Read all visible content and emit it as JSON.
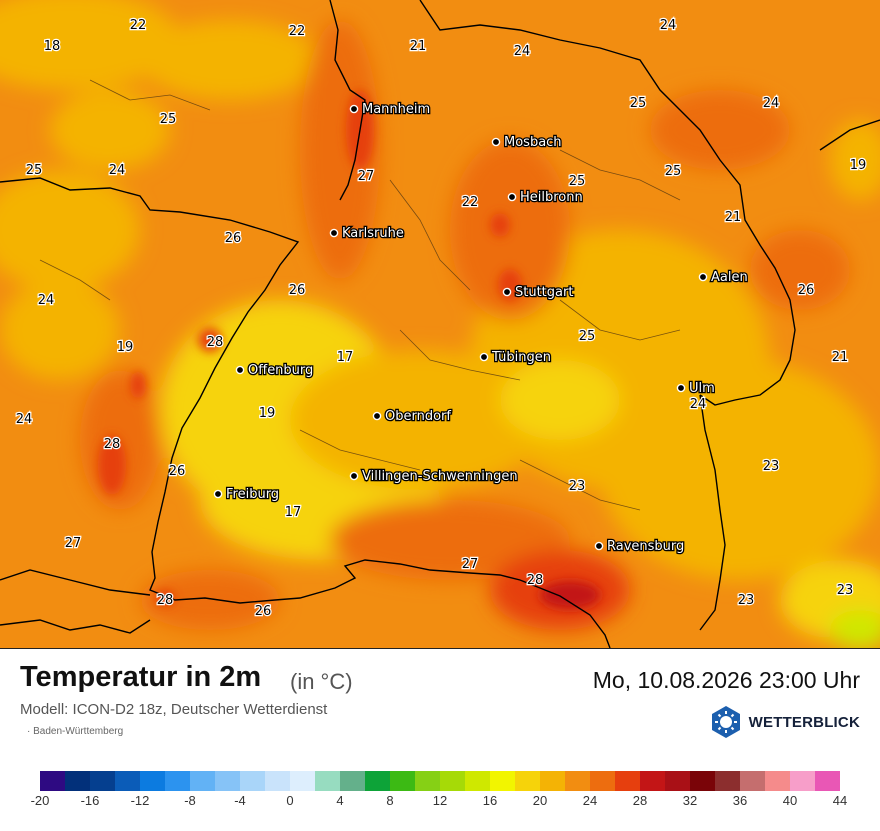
{
  "title": "Temperatur in 2m",
  "unit": "(in °C)",
  "model": "Modell: ICON-D2 18z, Deutscher Wetterdienst",
  "region": "Baden-Württemberg",
  "datetime": "Mo, 10.08.2026 23:00 Uhr",
  "brand": "WETTERBLICK",
  "cities": [
    {
      "name": "Mannheim"
    },
    {
      "name": "Mosbach"
    },
    {
      "name": "Heilbronn"
    },
    {
      "name": "Karlsruhe"
    },
    {
      "name": "Stuttgart"
    },
    {
      "name": "Aalen"
    },
    {
      "name": "Offenburg"
    },
    {
      "name": "Tübingen"
    },
    {
      "name": "Ulm"
    },
    {
      "name": "Oberndorf"
    },
    {
      "name": "Villingen-Schwenningen"
    },
    {
      "name": "Freiburg"
    },
    {
      "name": "Ravensburg"
    }
  ],
  "values": [
    "22",
    "18",
    "22",
    "21",
    "24",
    "24",
    "25",
    "25",
    "24",
    "24",
    "25",
    "25",
    "19",
    "27",
    "25",
    "22",
    "21",
    "26",
    "26",
    "24",
    "26",
    "25",
    "19",
    "28",
    "17",
    "21",
    "24",
    "19",
    "24",
    "28",
    "26",
    "23",
    "23",
    "17",
    "27",
    "27",
    "28",
    "28",
    "26",
    "23",
    "23"
  ],
  "legend": {
    "colors": [
      "#2e0a82",
      "#02307a",
      "#053f8f",
      "#0b5cb8",
      "#0c7be0",
      "#2c93ef",
      "#62b2f5",
      "#86c3f7",
      "#a9d5f9",
      "#c9e3fb",
      "#ddeefd",
      "#97dcc0",
      "#64b08b",
      "#0da338",
      "#3cba14",
      "#86d015",
      "#a6da07",
      "#cfe800",
      "#f2f500",
      "#f6d30a",
      "#f4b305",
      "#f28d11",
      "#ed6d0f",
      "#e63f0e",
      "#c31516",
      "#a91016",
      "#7a0408",
      "#8c2e2e",
      "#c56e6e",
      "#f58b8b",
      "#f79ec9",
      "#e957b5"
    ],
    "ticks": [
      "-20",
      "-16",
      "-12",
      "-8",
      "-4",
      "0",
      "4",
      "8",
      "12",
      "16",
      "20",
      "24",
      "28",
      "32",
      "36",
      "40",
      "44"
    ]
  }
}
